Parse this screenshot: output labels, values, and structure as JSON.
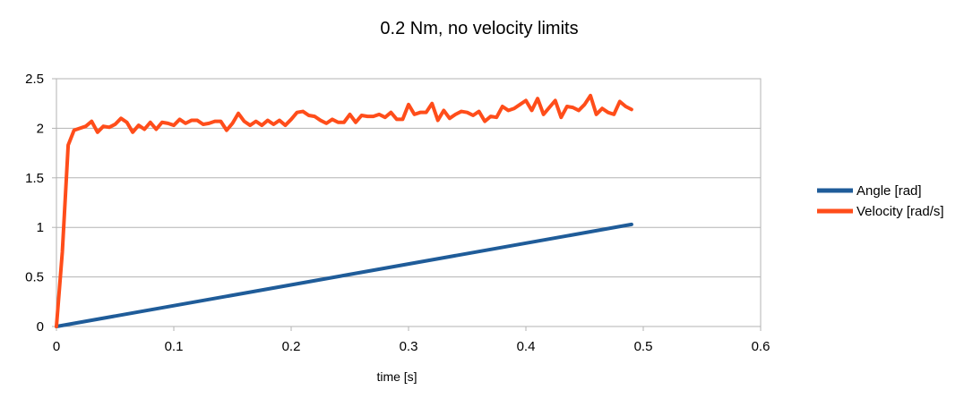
{
  "chart_data": {
    "type": "line",
    "title": "0.2 Nm, no velocity limits",
    "xlabel": "time [s]",
    "ylabel": "",
    "xlim": [
      0,
      0.6
    ],
    "ylim": [
      0,
      2.5
    ],
    "x_ticks": [
      "0",
      "0.1",
      "0.2",
      "0.3",
      "0.4",
      "0.5",
      "0.6"
    ],
    "y_ticks": [
      "0",
      "0.5",
      "1",
      "1.5",
      "2",
      "2.5"
    ],
    "grid": true,
    "legend_position": "right",
    "series": [
      {
        "name": "Angle [rad]",
        "color": "#1f5c99",
        "x": [
          0,
          0.49
        ],
        "y": [
          0,
          1.03
        ]
      },
      {
        "name": "Velocity [rad/s]",
        "color": "#ff4d1a",
        "x": [
          0,
          0.005,
          0.01,
          0.015,
          0.02,
          0.025,
          0.03,
          0.035,
          0.04,
          0.045,
          0.05,
          0.055,
          0.06,
          0.065,
          0.07,
          0.075,
          0.08,
          0.085,
          0.09,
          0.095,
          0.1,
          0.105,
          0.11,
          0.115,
          0.12,
          0.125,
          0.13,
          0.135,
          0.14,
          0.145,
          0.15,
          0.155,
          0.16,
          0.165,
          0.17,
          0.175,
          0.18,
          0.185,
          0.19,
          0.195,
          0.2,
          0.205,
          0.21,
          0.215,
          0.22,
          0.225,
          0.23,
          0.235,
          0.24,
          0.245,
          0.25,
          0.255,
          0.26,
          0.265,
          0.27,
          0.275,
          0.28,
          0.285,
          0.29,
          0.295,
          0.3,
          0.305,
          0.31,
          0.315,
          0.32,
          0.325,
          0.33,
          0.335,
          0.34,
          0.345,
          0.35,
          0.355,
          0.36,
          0.365,
          0.37,
          0.375,
          0.38,
          0.385,
          0.39,
          0.395,
          0.4,
          0.405,
          0.41,
          0.415,
          0.42,
          0.425,
          0.43,
          0.435,
          0.44,
          0.445,
          0.45,
          0.455,
          0.46,
          0.465,
          0.47,
          0.475,
          0.48,
          0.485,
          0.49
        ],
        "y": [
          0,
          0.75,
          1.83,
          1.98,
          2.0,
          2.02,
          2.07,
          1.96,
          2.02,
          2.01,
          2.04,
          2.1,
          2.06,
          1.96,
          2.03,
          1.99,
          2.06,
          1.99,
          2.06,
          2.05,
          2.03,
          2.09,
          2.05,
          2.08,
          2.08,
          2.04,
          2.05,
          2.07,
          2.07,
          1.98,
          2.05,
          2.15,
          2.07,
          2.03,
          2.07,
          2.03,
          2.08,
          2.04,
          2.08,
          2.03,
          2.09,
          2.16,
          2.17,
          2.13,
          2.12,
          2.08,
          2.05,
          2.09,
          2.06,
          2.06,
          2.14,
          2.06,
          2.13,
          2.12,
          2.12,
          2.14,
          2.11,
          2.16,
          2.09,
          2.09,
          2.24,
          2.14,
          2.16,
          2.16,
          2.25,
          2.08,
          2.18,
          2.1,
          2.14,
          2.17,
          2.16,
          2.13,
          2.17,
          2.07,
          2.12,
          2.11,
          2.22,
          2.18,
          2.2,
          2.24,
          2.28,
          2.18,
          2.3,
          2.14,
          2.21,
          2.28,
          2.11,
          2.22,
          2.21,
          2.18,
          2.24,
          2.33,
          2.14,
          2.2,
          2.16,
          2.14,
          2.27,
          2.22,
          2.19
        ]
      }
    ]
  }
}
